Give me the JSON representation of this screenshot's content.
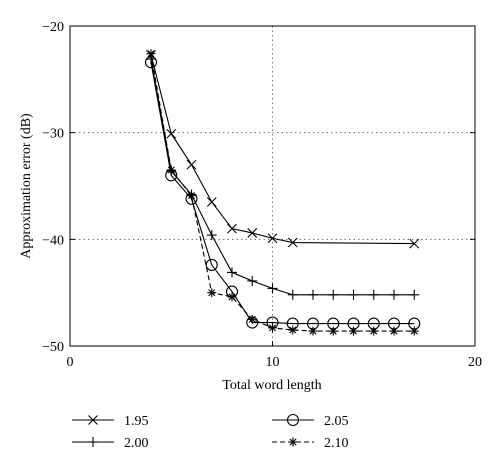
{
  "chart_data": {
    "type": "line",
    "title": "",
    "xlabel": "Total word length",
    "ylabel": "Approximation error (dB)",
    "xlim": [
      0,
      20
    ],
    "ylim": [
      -50,
      -20
    ],
    "xticks": [
      0,
      10,
      20
    ],
    "yticks": [
      -20,
      -30,
      -40,
      -50
    ],
    "xtick_labels": [
      "0",
      "10",
      "20"
    ],
    "ytick_labels": [
      "−20",
      "−30",
      "−40",
      "−50"
    ],
    "grid": true,
    "legend_placement": "below",
    "series": [
      {
        "name": "1.95",
        "marker": "x",
        "linestyle": "solid",
        "x": [
          4,
          5,
          6,
          7,
          8,
          9,
          10,
          11,
          17
        ],
        "y": [
          -22.7,
          -30.1,
          -33.0,
          -36.5,
          -39.0,
          -39.4,
          -39.9,
          -40.3,
          -40.4
        ]
      },
      {
        "name": "2.00",
        "marker": "plus",
        "linestyle": "solid",
        "x": [
          4,
          5,
          6,
          7,
          8,
          9,
          10,
          11,
          12,
          13,
          14,
          15,
          16,
          17
        ],
        "y": [
          -23.1,
          -33.6,
          -35.8,
          -39.6,
          -43.1,
          -43.9,
          -44.6,
          -45.2,
          -45.2,
          -45.2,
          -45.2,
          -45.2,
          -45.2,
          -45.2
        ]
      },
      {
        "name": "2.05",
        "marker": "circle",
        "linestyle": "solid",
        "x": [
          4,
          5,
          6,
          7,
          8,
          9,
          10,
          11,
          12,
          13,
          14,
          15,
          16,
          17
        ],
        "y": [
          -23.4,
          -34.0,
          -36.2,
          -42.4,
          -44.9,
          -47.8,
          -47.8,
          -47.9,
          -47.9,
          -47.9,
          -47.9,
          -47.9,
          -47.9,
          -47.9
        ]
      },
      {
        "name": "2.10",
        "marker": "asterisk",
        "linestyle": "dashed",
        "x": [
          4,
          5,
          6,
          7,
          8,
          9,
          10,
          11,
          12,
          13,
          14,
          15,
          16,
          17
        ],
        "y": [
          -22.6,
          -33.5,
          -35.9,
          -45.0,
          -45.4,
          -47.5,
          -48.3,
          -48.5,
          -48.6,
          -48.6,
          -48.6,
          -48.6,
          -48.6,
          -48.6
        ]
      }
    ]
  }
}
